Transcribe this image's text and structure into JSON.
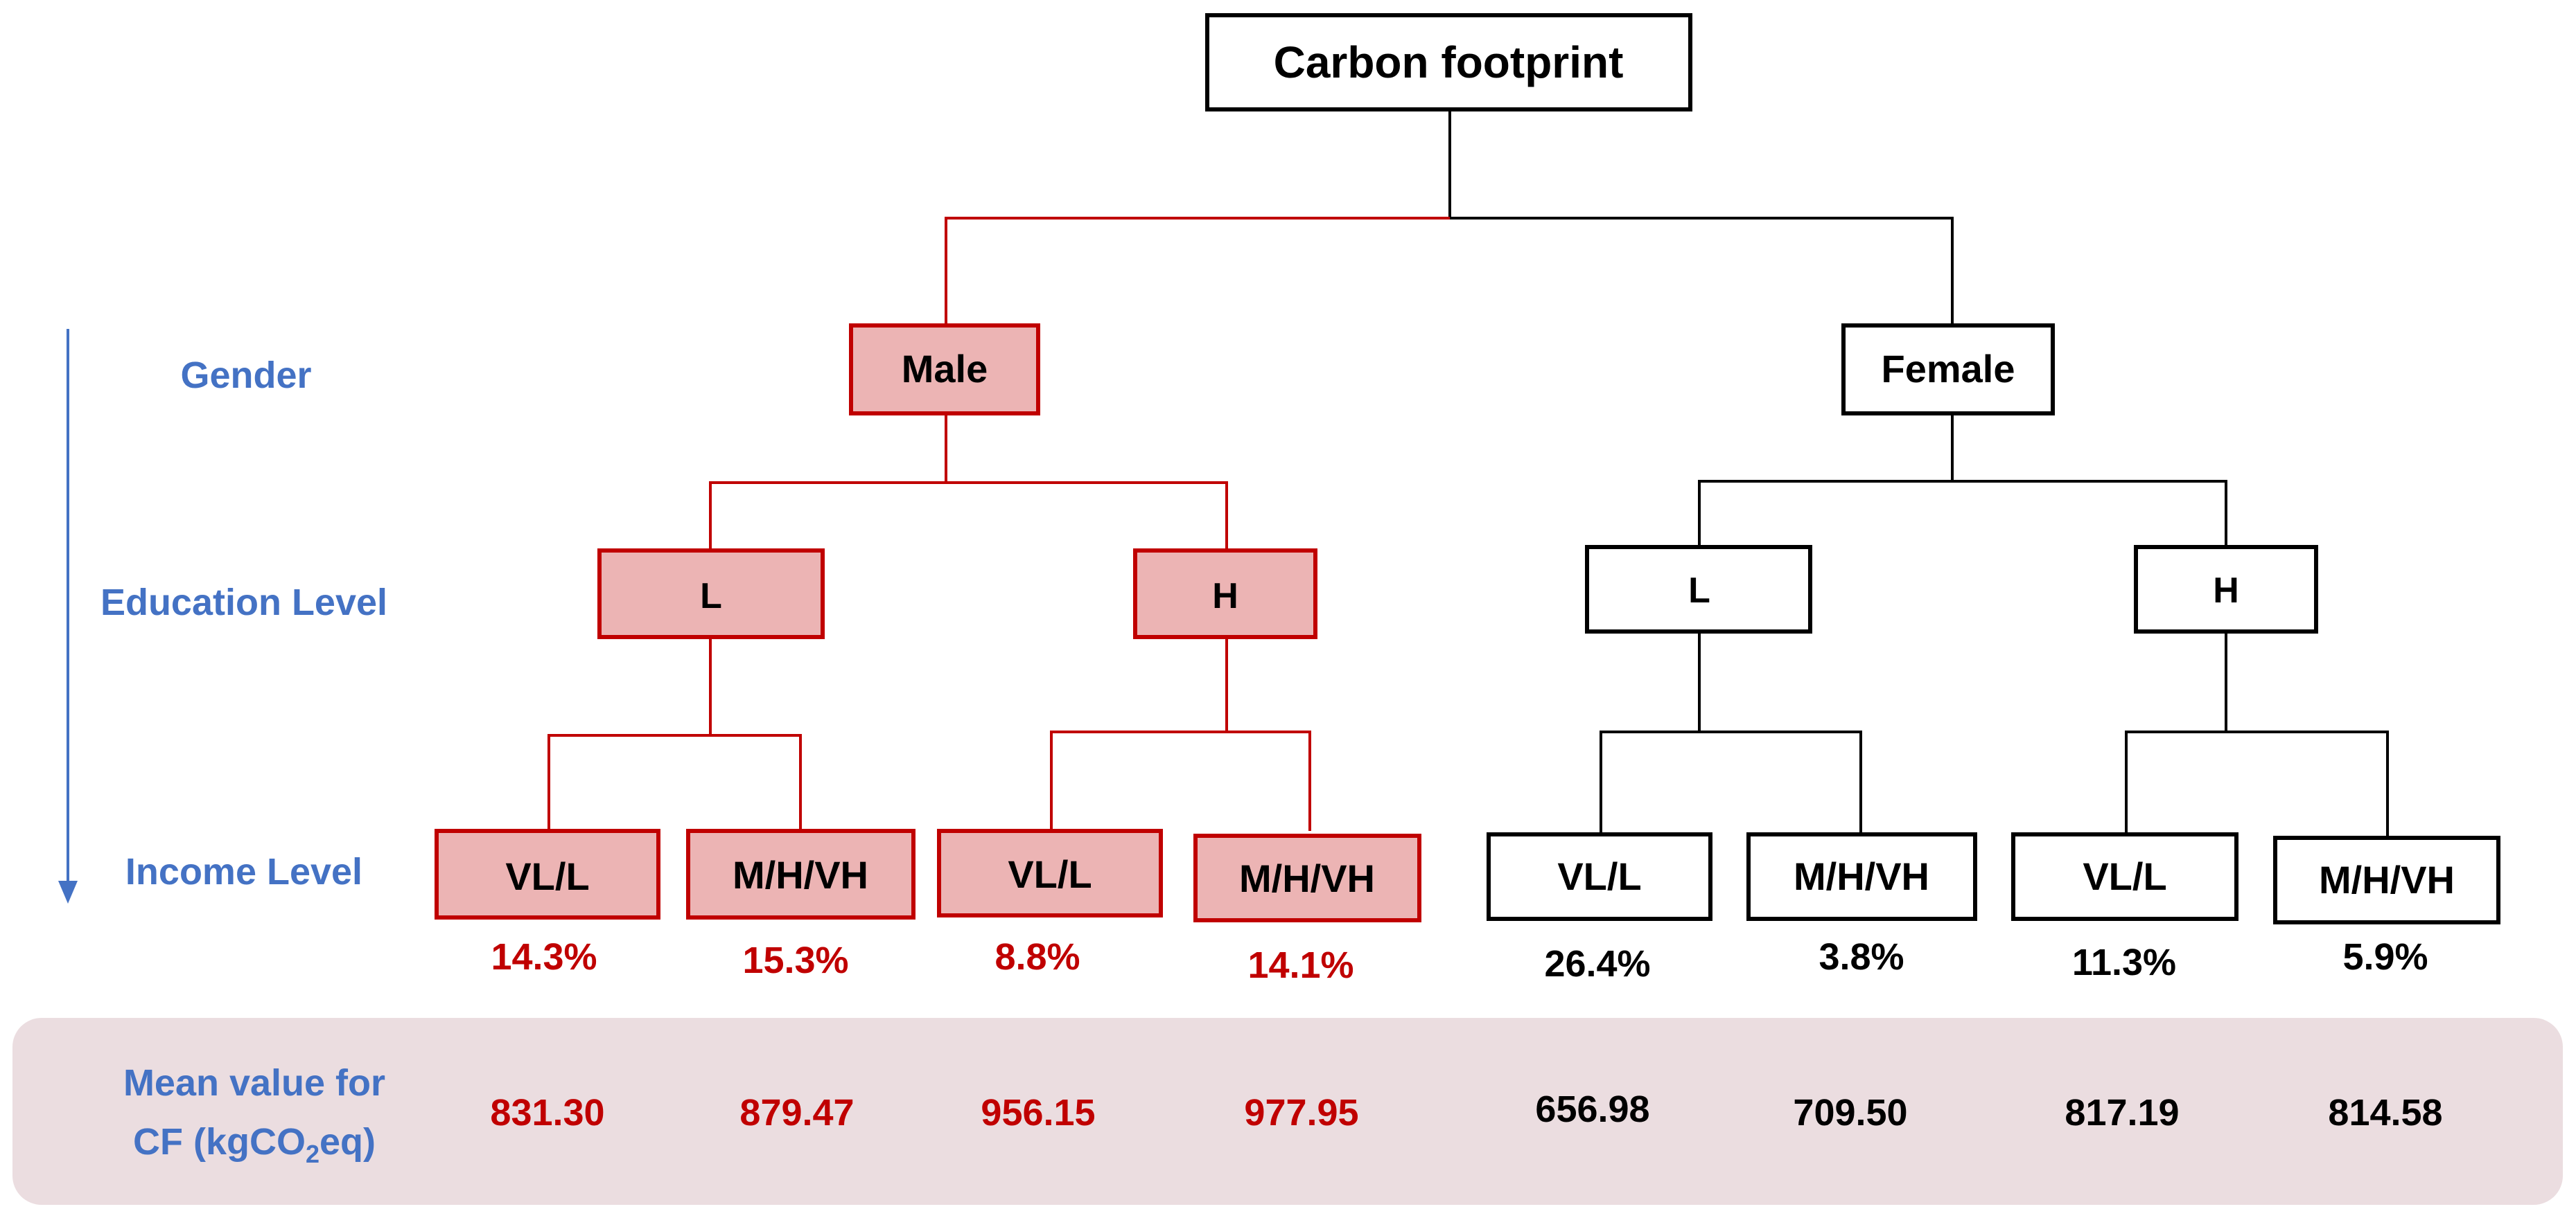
{
  "root": {
    "label": "Carbon footprint"
  },
  "levels": {
    "gender": "Gender",
    "education": "Education Level",
    "income": "Income Level"
  },
  "gender": {
    "male": {
      "label": "Male",
      "edu_low": {
        "label": "L",
        "inc_low": {
          "label": "VL/L",
          "percent": "14.3%",
          "mean": "831.30"
        },
        "inc_high": {
          "label": "M/H/VH",
          "percent": "15.3%",
          "mean": "879.47"
        }
      },
      "edu_high": {
        "label": "H",
        "inc_low": {
          "label": "VL/L",
          "percent": "8.8%",
          "mean": "956.15"
        },
        "inc_high": {
          "label": "M/H/VH",
          "percent": "14.1%",
          "mean": "977.95"
        }
      }
    },
    "female": {
      "label": "Female",
      "edu_low": {
        "label": "L",
        "inc_low": {
          "label": "VL/L",
          "percent": "26.4%",
          "mean": "656.98"
        },
        "inc_high": {
          "label": "M/H/VH",
          "percent": "3.8%",
          "mean": "709.50"
        }
      },
      "edu_high": {
        "label": "H",
        "inc_low": {
          "label": "VL/L",
          "percent": "11.3%",
          "mean": "817.19"
        },
        "inc_high": {
          "label": "M/H/VH",
          "percent": "5.9%",
          "mean": "814.58"
        }
      }
    }
  },
  "mean_row": {
    "label_line1": "Mean value for",
    "label_line2_prefix": "CF (kgCO",
    "label_line2_sub": "2",
    "label_line2_suffix": "eq)"
  },
  "colors": {
    "highlight_stroke": "#c00000",
    "highlight_fill": "#ecb4b4",
    "highlight_text": "#c00000",
    "normal_stroke": "#000000",
    "normal_fill": "#ffffff",
    "normal_text": "#000000",
    "level_text": "#4472c4",
    "arrow": "#4472c4",
    "panel_fill": "#ebdde0"
  }
}
